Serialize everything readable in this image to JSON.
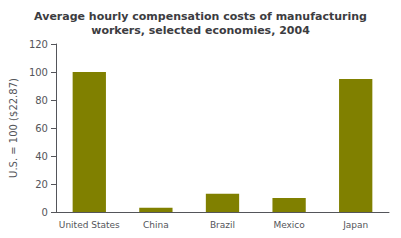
{
  "chart_data": {
    "type": "bar",
    "title": "Average hourly compensation costs of manufacturing\nworkers, selected economies, 2004",
    "ylabel": "U.S. = 100 ($22.87)",
    "categories": [
      "United States",
      "China",
      "Brazil",
      "Mexico",
      "Japan"
    ],
    "values": [
      100,
      3,
      13,
      10,
      95
    ],
    "color": "#808000",
    "ylim": [
      0,
      120
    ],
    "yticks": [
      0,
      20,
      40,
      60,
      80,
      100,
      120
    ],
    "grid": false
  }
}
